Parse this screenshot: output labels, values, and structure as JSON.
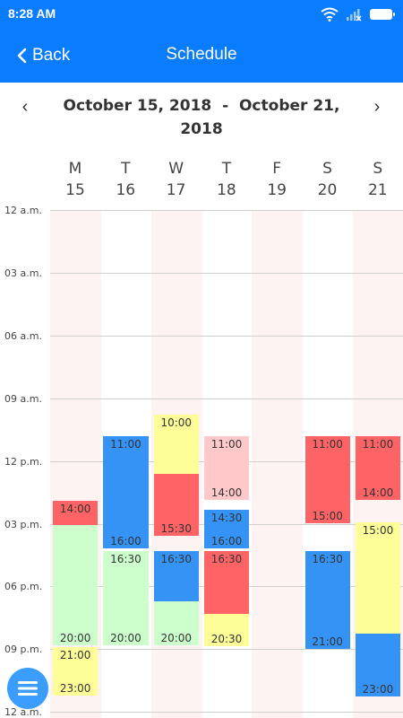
{
  "status_bar": {
    "time": "8:28 AM"
  },
  "app_bar": {
    "back_label": "Back",
    "title": "Schedule"
  },
  "date_range": {
    "start": "October 15, 2018",
    "separator": "-",
    "end": "October 21, 2018"
  },
  "days": [
    {
      "letter": "M",
      "date": "15"
    },
    {
      "letter": "T",
      "date": "16"
    },
    {
      "letter": "W",
      "date": "17"
    },
    {
      "letter": "T",
      "date": "18"
    },
    {
      "letter": "F",
      "date": "19"
    },
    {
      "letter": "S",
      "date": "20"
    },
    {
      "letter": "S",
      "date": "21"
    }
  ],
  "hour_labels": [
    "12 a.m.",
    "03 a.m.",
    "06 a.m.",
    "09 a.m.",
    "12 p.m.",
    "03 p.m.",
    "06 p.m.",
    "09 p.m.",
    "12 a.m."
  ],
  "colors": {
    "header_blue": "#0a7cff",
    "column_tint": "#fdf3f3",
    "event_red": "#fe6466",
    "event_blue": "#3593f5",
    "event_yellow": "#fefe98",
    "event_green": "#ccffcc",
    "event_pink": "#ffc9c9"
  },
  "events": [
    {
      "day": 0,
      "start_time": "14:00",
      "end_time": "",
      "start_hour": 13.9,
      "end_hour": 15.05,
      "color": "#fe6466"
    },
    {
      "day": 0,
      "start_time": "",
      "end_time": "20:00",
      "start_hour": 15.05,
      "end_hour": 20.8,
      "color": "#ccffcc"
    },
    {
      "day": 0,
      "start_time": "21:00",
      "end_time": "23:00",
      "start_hour": 20.9,
      "end_hour": 23.2,
      "color": "#fefe98"
    },
    {
      "day": 1,
      "start_time": "11:00",
      "end_time": "16:00",
      "start_hour": 10.8,
      "end_hour": 16.2,
      "color": "#3593f5"
    },
    {
      "day": 1,
      "start_time": "16:30",
      "end_time": "20:00",
      "start_hour": 16.3,
      "end_hour": 20.8,
      "color": "#ccffcc"
    },
    {
      "day": 2,
      "start_time": "10:00",
      "end_time": "",
      "start_hour": 9.8,
      "end_hour": 12.6,
      "color": "#fefe98"
    },
    {
      "day": 2,
      "start_time": "",
      "end_time": "15:30",
      "start_hour": 12.6,
      "end_hour": 15.6,
      "color": "#fe6466"
    },
    {
      "day": 2,
      "start_time": "16:30",
      "end_time": "",
      "start_hour": 16.3,
      "end_hour": 18.7,
      "color": "#3593f5"
    },
    {
      "day": 2,
      "start_time": "",
      "end_time": "20:00",
      "start_hour": 18.7,
      "end_hour": 20.8,
      "color": "#ccffcc"
    },
    {
      "day": 3,
      "start_time": "11:00",
      "end_time": "14:00",
      "start_hour": 10.8,
      "end_hour": 13.85,
      "color": "#ffc9c9"
    },
    {
      "day": 3,
      "start_time": "14:30",
      "end_time": "16:00",
      "start_hour": 14.35,
      "end_hour": 16.2,
      "color": "#3593f5"
    },
    {
      "day": 3,
      "start_time": "16:30",
      "end_time": "",
      "start_hour": 16.3,
      "end_hour": 19.3,
      "color": "#fe6466"
    },
    {
      "day": 3,
      "start_time": "",
      "end_time": "20:30",
      "start_hour": 19.3,
      "end_hour": 20.85,
      "color": "#fefe98"
    },
    {
      "day": 5,
      "start_time": "11:00",
      "end_time": "15:00",
      "start_hour": 10.8,
      "end_hour": 15.0,
      "color": "#fe6466"
    },
    {
      "day": 5,
      "start_time": "16:30",
      "end_time": "21:00",
      "start_hour": 16.3,
      "end_hour": 21.0,
      "color": "#3593f5"
    },
    {
      "day": 6,
      "start_time": "11:00",
      "end_time": "14:00",
      "start_hour": 10.8,
      "end_hour": 13.85,
      "color": "#fe6466"
    },
    {
      "day": 6,
      "start_time": "15:00",
      "end_time": "",
      "start_hour": 14.95,
      "end_hour": 20.25,
      "color": "#fefe98"
    },
    {
      "day": 6,
      "start_time": "",
      "end_time": "23:00",
      "start_hour": 20.25,
      "end_hour": 23.25,
      "color": "#3593f5"
    }
  ]
}
